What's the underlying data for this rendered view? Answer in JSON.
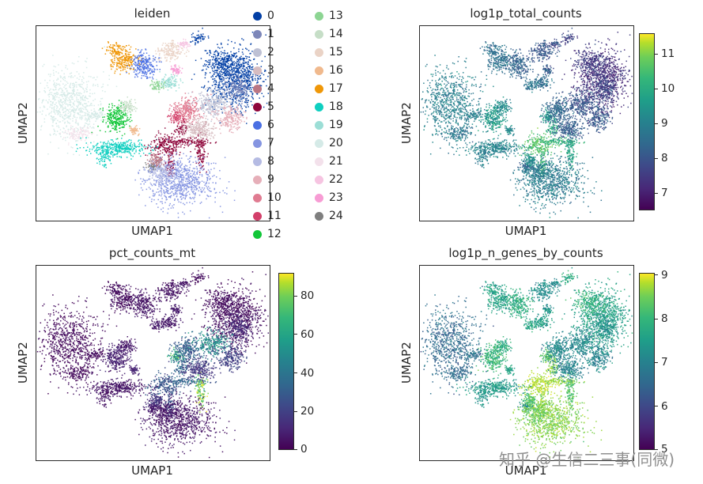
{
  "figure": {
    "background": "#ffffff"
  },
  "watermark": {
    "text": "知乎 @生信二三事(同微)",
    "color": "#8f8f8f"
  },
  "panels": [
    {
      "title": "leiden",
      "xlabel": "UMAP1",
      "ylabel": "UMAP2"
    },
    {
      "title": "log1p_total_counts",
      "xlabel": "UMAP1",
      "ylabel": "UMAP2",
      "colorbar": {
        "vmin": 6.5,
        "vmax": 11.6,
        "ticks": [
          7,
          8,
          9,
          10,
          11
        ]
      }
    },
    {
      "title": "pct_counts_mt",
      "xlabel": "UMAP1",
      "ylabel": "UMAP2",
      "colorbar": {
        "vmin": 0,
        "vmax": 92,
        "ticks": [
          0,
          20,
          40,
          60,
          80
        ]
      }
    },
    {
      "title": "log1p_n_genes_by_counts",
      "xlabel": "UMAP1",
      "ylabel": "UMAP2",
      "colorbar": {
        "vmin": 5,
        "vmax": 9.05,
        "ticks": [
          5,
          6,
          7,
          8,
          9
        ]
      }
    }
  ],
  "legend": {
    "labels": [
      "0",
      "1",
      "2",
      "3",
      "4",
      "5",
      "6",
      "7",
      "8",
      "9",
      "10",
      "11",
      "12",
      "13",
      "14",
      "15",
      "16",
      "17",
      "18",
      "19",
      "20",
      "21",
      "22",
      "23",
      "24"
    ],
    "colors": [
      "#023fa5",
      "#7d87b9",
      "#bec1d4",
      "#d6bcc0",
      "#bb7784",
      "#8e063b",
      "#4a6fe3",
      "#8595e1",
      "#b5bbe3",
      "#e6afb9",
      "#e07b91",
      "#d33f6a",
      "#11c638",
      "#8dd593",
      "#c6dec7",
      "#ead3c6",
      "#f0b98d",
      "#ef9708",
      "#0fcfc0",
      "#9cded6",
      "#d5eae7",
      "#f3e1eb",
      "#f6c4e1",
      "#f79cd4",
      "#7f7f7f"
    ]
  },
  "chart_data": [
    {
      "type": "scatter",
      "title": "leiden",
      "xlabel": "UMAP1",
      "ylabel": "UMAP2",
      "legend_position": "right",
      "categories": [
        "0",
        "1",
        "2",
        "3",
        "4",
        "5",
        "6",
        "7",
        "8",
        "9",
        "10",
        "11",
        "12",
        "13",
        "14",
        "15",
        "16",
        "17",
        "18",
        "19",
        "20",
        "21",
        "22",
        "23",
        "24"
      ],
      "colors": [
        "#023fa5",
        "#7d87b9",
        "#bec1d4",
        "#d6bcc0",
        "#bb7784",
        "#8e063b",
        "#4a6fe3",
        "#8595e1",
        "#b5bbe3",
        "#e6afb9",
        "#e07b91",
        "#d33f6a",
        "#11c638",
        "#8dd593",
        "#c6dec7",
        "#ead3c6",
        "#f0b98d",
        "#ef9708",
        "#0fcfc0",
        "#9cded6",
        "#d5eae7",
        "#f3e1eb",
        "#f6c4e1",
        "#f79cd4",
        "#7f7f7f"
      ],
      "clusters": [
        {
          "c": 0,
          "x": 0.855,
          "y": 0.27,
          "rx": 0.06,
          "ry": 0.08,
          "n": 850,
          "tc": 7.2,
          "mt": 3,
          "ng": 7.3
        },
        {
          "c": 0,
          "x": 0.795,
          "y": 0.185,
          "rx": 0.035,
          "ry": 0.035,
          "n": 200,
          "tc": 7.4,
          "mt": 3,
          "ng": 7.6
        },
        {
          "c": 0,
          "x": 0.695,
          "y": 0.065,
          "rx": 0.016,
          "ry": 0.016,
          "n": 60,
          "tc": 7.5,
          "mt": 3,
          "ng": 7.5
        },
        {
          "c": 1,
          "x": 0.865,
          "y": 0.32,
          "rx": 0.03,
          "ry": 0.035,
          "n": 170,
          "tc": 7.6,
          "mt": 12,
          "ng": 7.0
        },
        {
          "c": 20,
          "x": 0.145,
          "y": 0.4,
          "rx": 0.068,
          "ry": 0.095,
          "n": 720,
          "tc": 8.7,
          "mt": 2,
          "ng": 6.4
        },
        {
          "c": 20,
          "x": 0.255,
          "y": 0.46,
          "rx": 0.03,
          "ry": 0.012,
          "n": 70,
          "tc": 8.7,
          "mt": 2,
          "ng": 6.5
        },
        {
          "c": 21,
          "x": 0.185,
          "y": 0.555,
          "rx": 0.028,
          "ry": 0.02,
          "n": 110,
          "tc": 8.5,
          "mt": 2,
          "ng": 6.4
        },
        {
          "c": 17,
          "x": 0.375,
          "y": 0.175,
          "rx": 0.028,
          "ry": 0.03,
          "n": 220,
          "tc": 8.4,
          "mt": 3,
          "ng": 7.3
        },
        {
          "c": 17,
          "x": 0.335,
          "y": 0.115,
          "rx": 0.02,
          "ry": 0.016,
          "n": 70,
          "tc": 8.4,
          "mt": 3,
          "ng": 7.3
        },
        {
          "c": 6,
          "x": 0.462,
          "y": 0.2,
          "rx": 0.027,
          "ry": 0.034,
          "n": 220,
          "tc": 8.1,
          "mt": 5,
          "ng": 7.5
        },
        {
          "c": 15,
          "x": 0.575,
          "y": 0.13,
          "rx": 0.028,
          "ry": 0.026,
          "n": 170,
          "tc": 7.9,
          "mt": 4,
          "ng": 7.0
        },
        {
          "c": 22,
          "x": 0.635,
          "y": 0.095,
          "rx": 0.011,
          "ry": 0.011,
          "n": 45,
          "tc": 7.7,
          "mt": 5,
          "ng": 6.9
        },
        {
          "c": 23,
          "x": 0.6,
          "y": 0.225,
          "rx": 0.012,
          "ry": 0.012,
          "n": 55,
          "tc": 8.0,
          "mt": 6,
          "ng": 7.1
        },
        {
          "c": 19,
          "x": 0.565,
          "y": 0.29,
          "rx": 0.021,
          "ry": 0.017,
          "n": 115,
          "tc": 8.3,
          "mt": 6,
          "ng": 7.2
        },
        {
          "c": 13,
          "x": 0.515,
          "y": 0.305,
          "rx": 0.014,
          "ry": 0.012,
          "n": 60,
          "tc": 8.5,
          "mt": 6,
          "ng": 7.4
        },
        {
          "c": 12,
          "x": 0.345,
          "y": 0.475,
          "rx": 0.028,
          "ry": 0.034,
          "n": 260,
          "tc": 9.2,
          "mt": 8,
          "ng": 7.7
        },
        {
          "c": 14,
          "x": 0.39,
          "y": 0.415,
          "rx": 0.018,
          "ry": 0.016,
          "n": 100,
          "tc": 8.9,
          "mt": 6,
          "ng": 7.5
        },
        {
          "c": 16,
          "x": 0.42,
          "y": 0.535,
          "rx": 0.013,
          "ry": 0.011,
          "n": 55,
          "tc": 8.9,
          "mt": 8,
          "ng": 7.4
        },
        {
          "c": 18,
          "x": 0.355,
          "y": 0.625,
          "rx": 0.07,
          "ry": 0.02,
          "n": 330,
          "tc": 8.8,
          "mt": 5,
          "ng": 7.2
        },
        {
          "c": 18,
          "x": 0.295,
          "y": 0.675,
          "rx": 0.016,
          "ry": 0.028,
          "n": 80,
          "tc": 8.7,
          "mt": 5,
          "ng": 7.1
        },
        {
          "c": 24,
          "x": 0.5,
          "y": 0.72,
          "rx": 0.015,
          "ry": 0.013,
          "n": 70,
          "tc": 8.1,
          "mt": 10,
          "ng": 7.0
        },
        {
          "c": 5,
          "x": 0.555,
          "y": 0.615,
          "rx": 0.038,
          "ry": 0.028,
          "n": 210,
          "tc": 10.2,
          "mt": 25,
          "ng": 8.6
        },
        {
          "c": 5,
          "x": 0.655,
          "y": 0.595,
          "rx": 0.045,
          "ry": 0.008,
          "n": 90,
          "tc": 9.8,
          "mt": 30,
          "ng": 8.4
        },
        {
          "c": 5,
          "x": 0.575,
          "y": 0.71,
          "rx": 0.011,
          "ry": 0.038,
          "n": 85,
          "tc": 10.0,
          "mt": 25,
          "ng": 8.5
        },
        {
          "c": 5,
          "x": 0.625,
          "y": 0.525,
          "rx": 0.018,
          "ry": 0.018,
          "n": 60,
          "tc": 9.6,
          "mt": 30,
          "ng": 8.3
        },
        {
          "c": 5,
          "x": 0.705,
          "y": 0.64,
          "rx": 0.011,
          "ry": 0.045,
          "n": 110,
          "tc": 9.4,
          "mt": 72,
          "ng": 7.9
        },
        {
          "c": 11,
          "x": 0.6,
          "y": 0.47,
          "rx": 0.018,
          "ry": 0.018,
          "n": 90,
          "tc": 9.2,
          "mt": 55,
          "ng": 8.0
        },
        {
          "c": 10,
          "x": 0.645,
          "y": 0.435,
          "rx": 0.032,
          "ry": 0.032,
          "n": 260,
          "tc": 8.2,
          "mt": 28,
          "ng": 6.9
        },
        {
          "c": 3,
          "x": 0.7,
          "y": 0.53,
          "rx": 0.032,
          "ry": 0.028,
          "n": 220,
          "tc": 8.0,
          "mt": 15,
          "ng": 6.8
        },
        {
          "c": 2,
          "x": 0.755,
          "y": 0.4,
          "rx": 0.035,
          "ry": 0.033,
          "n": 260,
          "tc": 7.8,
          "mt": 45,
          "ng": 6.9
        },
        {
          "c": 9,
          "x": 0.835,
          "y": 0.475,
          "rx": 0.032,
          "ry": 0.03,
          "n": 220,
          "tc": 7.9,
          "mt": 18,
          "ng": 6.8
        },
        {
          "c": 7,
          "x": 0.615,
          "y": 0.8,
          "rx": 0.075,
          "ry": 0.065,
          "n": 760,
          "tc": 8.6,
          "mt": 5,
          "ng": 8.3
        },
        {
          "c": 8,
          "x": 0.545,
          "y": 0.755,
          "rx": 0.028,
          "ry": 0.026,
          "n": 150,
          "tc": 8.6,
          "mt": 5,
          "ng": 8.1
        },
        {
          "c": 4,
          "x": 0.515,
          "y": 0.69,
          "rx": 0.016,
          "ry": 0.016,
          "n": 80,
          "tc": 9.0,
          "mt": 15,
          "ng": 7.9
        }
      ]
    },
    {
      "type": "scatter",
      "title": "log1p_total_counts",
      "xlabel": "UMAP1",
      "ylabel": "UMAP2",
      "colormap": "viridis",
      "value_range": [
        6.5,
        11.6
      ],
      "colorbar_ticks": [
        7,
        8,
        9,
        10,
        11
      ],
      "cluster_values_key": "tc"
    },
    {
      "type": "scatter",
      "title": "pct_counts_mt",
      "xlabel": "UMAP1",
      "ylabel": "UMAP2",
      "colormap": "viridis",
      "value_range": [
        0,
        92
      ],
      "colorbar_ticks": [
        0,
        20,
        40,
        60,
        80
      ],
      "cluster_values_key": "mt"
    },
    {
      "type": "scatter",
      "title": "log1p_n_genes_by_counts",
      "xlabel": "UMAP1",
      "ylabel": "UMAP2",
      "colormap": "viridis",
      "value_range": [
        5,
        9.05
      ],
      "colorbar_ticks": [
        5,
        6,
        7,
        8,
        9
      ],
      "cluster_values_key": "ng"
    }
  ]
}
